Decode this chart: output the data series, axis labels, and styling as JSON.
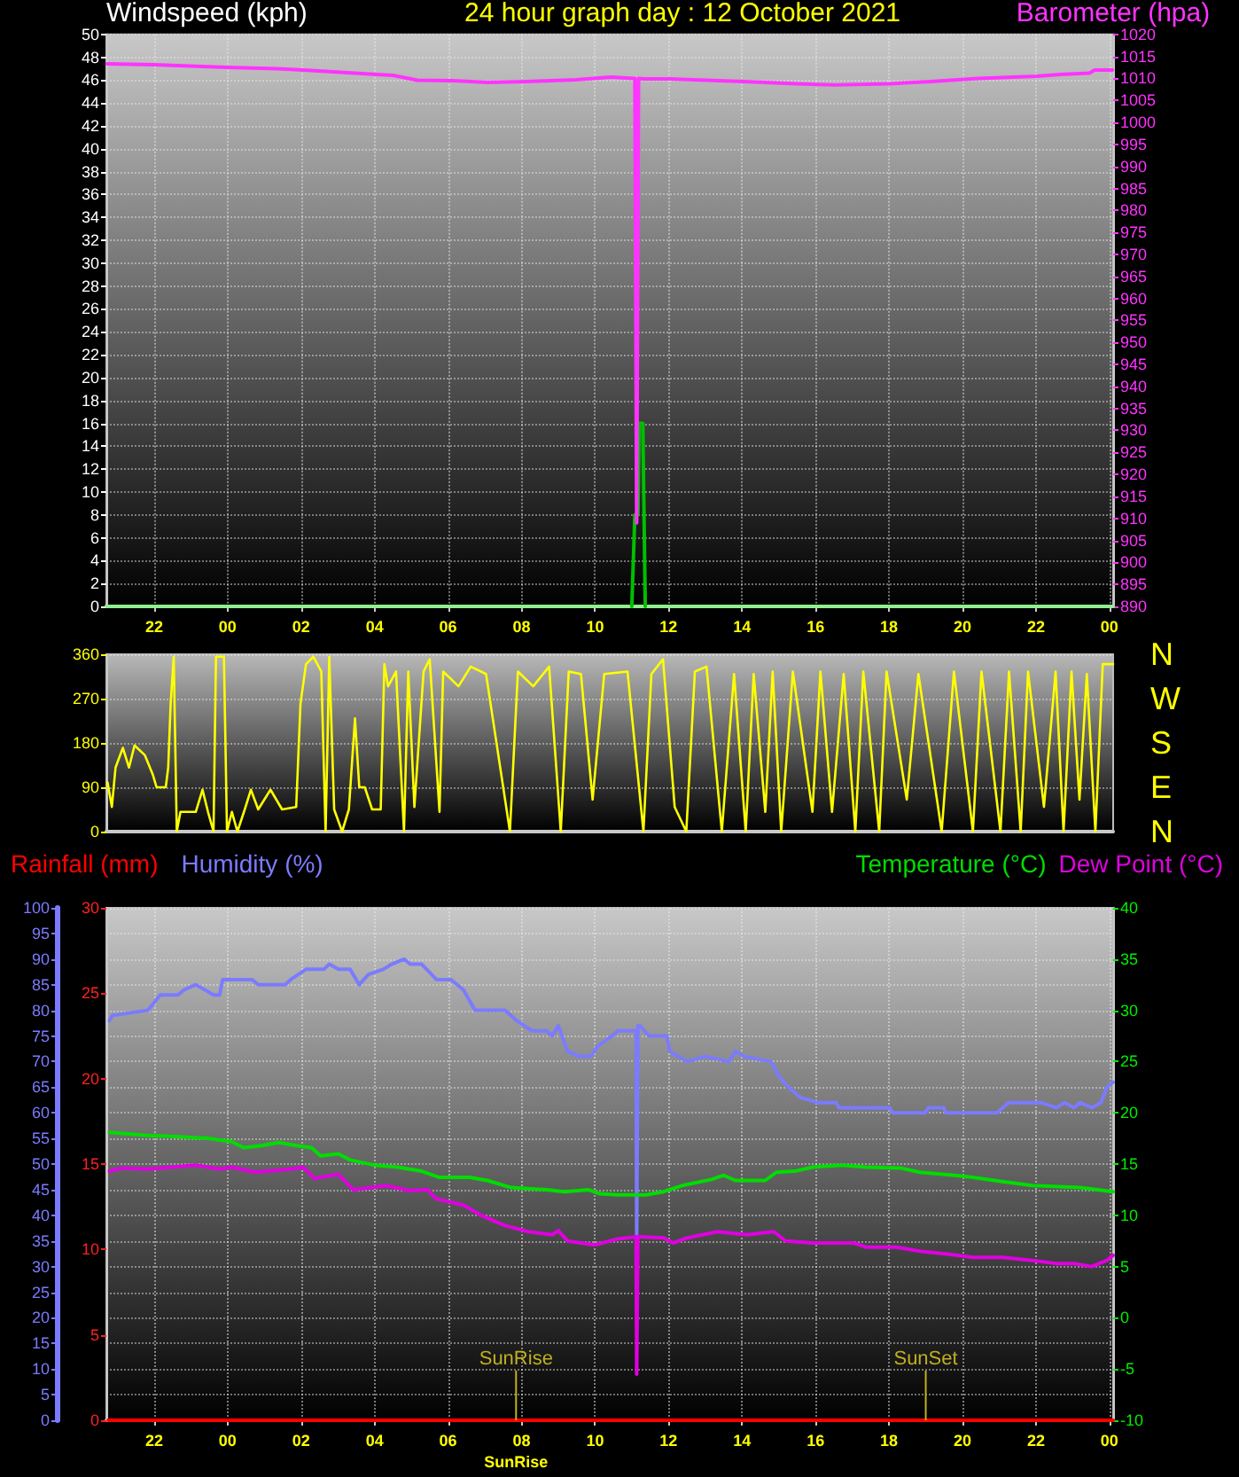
{
  "chart_data": [
    {
      "type": "line",
      "title": "24 hour graph day : 12 October 2021",
      "ylabel": "Windspeed (kph)",
      "y2label": "Barometer (hpa)",
      "xlim": [
        "2021-10-11T20:42",
        "2021-10-13T00:06"
      ],
      "xticks": [
        {
          "value": "2021-10-11T22:00",
          "label": "22"
        },
        {
          "value": "2021-10-12T00:00",
          "label": "00"
        },
        {
          "value": "2021-10-12T02:00",
          "label": "02"
        },
        {
          "value": "2021-10-12T04:00",
          "label": "04"
        },
        {
          "value": "2021-10-12T06:00",
          "label": "06"
        },
        {
          "value": "2021-10-12T08:00",
          "label": "08"
        },
        {
          "value": "2021-10-12T10:00",
          "label": "10"
        },
        {
          "value": "2021-10-12T12:00",
          "label": "12"
        },
        {
          "value": "2021-10-12T14:00",
          "label": "14"
        },
        {
          "value": "2021-10-12T16:00",
          "label": "16"
        },
        {
          "value": "2021-10-12T18:00",
          "label": "18"
        },
        {
          "value": "2021-10-12T20:00",
          "label": "20"
        },
        {
          "value": "2021-10-12T22:00",
          "label": "22"
        },
        {
          "value": "2021-10-13T00:00",
          "label": "00"
        }
      ],
      "ylim": [
        0,
        50
      ],
      "yticks": [
        0,
        2,
        4,
        6,
        8,
        10,
        12,
        14,
        16,
        18,
        20,
        22,
        24,
        26,
        28,
        30,
        32,
        34,
        36,
        38,
        40,
        42,
        44,
        46,
        48,
        50
      ],
      "y2lim": [
        890,
        1020
      ],
      "y2ticks": [
        890,
        895,
        900,
        905,
        910,
        915,
        920,
        925,
        930,
        935,
        940,
        945,
        950,
        955,
        960,
        965,
        970,
        975,
        980,
        985,
        990,
        995,
        1000,
        1005,
        1010,
        1015,
        1020
      ],
      "grid": true,
      "series": [
        {
          "color": "#90ee90",
          "x": [
            "2021-10-11T20:42",
            "2021-10-13T00:06"
          ],
          "values": [
            0,
            0
          ]
        },
        {
          "color": "#00c000",
          "x": [
            "2021-10-12T11:00",
            "2021-10-12T11:05",
            "2021-10-12T11:10",
            "2021-10-12T11:12",
            "2021-10-12T11:18",
            "2021-10-12T11:22"
          ],
          "values": [
            0,
            8,
            8,
            16,
            16,
            0
          ]
        },
        {
          "color": "#ff33ff",
          "axis": "y2",
          "x": [
            "2021-10-11T20:43",
            "2021-10-11T22:00",
            "2021-10-12T00:00",
            "2021-10-12T01:21",
            "2021-10-12T02:04",
            "2021-10-12T04:04",
            "2021-10-12T04:30",
            "2021-10-12T05:10",
            "2021-10-12T06:08",
            "2021-10-12T07:05",
            "2021-10-12T08:08",
            "2021-10-12T09:28",
            "2021-10-12T10:26",
            "2021-10-12T11:05",
            "2021-10-12T11:08",
            "2021-10-12T11:11",
            "2021-10-12T11:20",
            "2021-10-12T12:03",
            "2021-10-12T14:03",
            "2021-10-12T15:29",
            "2021-10-12T16:31",
            "2021-10-12T18:02",
            "2021-10-12T19:08",
            "2021-10-12T20:25",
            "2021-10-12T22:01",
            "2021-10-12T22:39",
            "2021-10-12T23:27",
            "2021-10-12T23:36",
            "2021-10-13T00:05"
          ],
          "values": [
            1013.3,
            1013.1,
            1012.5,
            1012.2,
            1011.9,
            1010.9,
            1010.7,
            1009.6,
            1009.5,
            1009.1,
            1009.3,
            1009.7,
            1010.3,
            1010.0,
            909,
            1010.0,
            1009.9,
            1009.9,
            1009.3,
            1008.8,
            1008.5,
            1008.8,
            1009.3,
            1010.0,
            1010.5,
            1010.9,
            1011.2,
            1011.9,
            1011.9
          ]
        }
      ]
    },
    {
      "type": "line",
      "xlim": [
        "2021-10-11T20:42",
        "2021-10-13T00:06"
      ],
      "ylim": [
        0,
        360
      ],
      "yticks": [
        0,
        90,
        180,
        270,
        360
      ],
      "tick_labels": "y",
      "grid": "y",
      "annotations": [
        "N",
        "W",
        "S",
        "E",
        "N"
      ],
      "series": [
        {
          "color": "#ffff00",
          "x": [
            "2021-10-11T20:44",
            "2021-10-11T20:51",
            "2021-10-11T20:57",
            "2021-10-11T21:09",
            "2021-10-11T21:19",
            "2021-10-11T21:28",
            "2021-10-11T21:45",
            "2021-10-11T21:58",
            "2021-10-11T22:04",
            "2021-10-11T22:19",
            "2021-10-11T22:23",
            "2021-10-11T22:27",
            "2021-10-11T22:32",
            "2021-10-11T22:37",
            "2021-10-11T22:43",
            "2021-10-11T23:08",
            "2021-10-11T23:19",
            "2021-10-11T23:28",
            "2021-10-11T23:37",
            "2021-10-11T23:41",
            "2021-10-11T23:54",
            "2021-10-11T23:59",
            "2021-10-12T00:07",
            "2021-10-12T00:16",
            "2021-10-12T00:28",
            "2021-10-12T00:38",
            "2021-10-12T00:50",
            "2021-10-12T01:10",
            "2021-10-12T01:29",
            "2021-10-12T01:52",
            "2021-10-12T01:59",
            "2021-10-12T02:08",
            "2021-10-12T02:20",
            "2021-10-12T02:33",
            "2021-10-12T02:40",
            "2021-10-12T02:46",
            "2021-10-12T02:54",
            "2021-10-12T03:07",
            "2021-10-12T03:18",
            "2021-10-12T03:28",
            "2021-10-12T03:35",
            "2021-10-12T03:44",
            "2021-10-12T03:56",
            "2021-10-12T04:10",
            "2021-10-12T04:16",
            "2021-10-12T04:22",
            "2021-10-12T04:35",
            "2021-10-12T04:48",
            "2021-10-12T04:55",
            "2021-10-12T05:05",
            "2021-10-12T05:20",
            "2021-10-12T05:30",
            "2021-10-12T05:46",
            "2021-10-12T05:52",
            "2021-10-12T06:17",
            "2021-10-12T06:37",
            "2021-10-12T07:02",
            "2021-10-12T07:41",
            "2021-10-12T07:54",
            "2021-10-12T08:19",
            "2021-10-12T08:45",
            "2021-10-12T09:04",
            "2021-10-12T09:17",
            "2021-10-12T09:37",
            "2021-10-12T09:56",
            "2021-10-12T10:15",
            "2021-10-12T10:53",
            "2021-10-12T11:19",
            "2021-10-12T11:32",
            "2021-10-12T11:51",
            "2021-10-12T12:10",
            "2021-10-12T12:29",
            "2021-10-12T12:43",
            "2021-10-12T13:02",
            "2021-10-12T13:27",
            "2021-10-12T13:47",
            "2021-10-12T14:06",
            "2021-10-12T14:19",
            "2021-10-12T14:38",
            "2021-10-12T14:50",
            "2021-10-12T15:04",
            "2021-10-12T15:23",
            "2021-10-12T15:55",
            "2021-10-12T16:08",
            "2021-10-12T16:27",
            "2021-10-12T16:46",
            "2021-10-12T17:05",
            "2021-10-12T17:18",
            "2021-10-12T17:44",
            "2021-10-12T17:56",
            "2021-10-12T18:29",
            "2021-10-12T18:48",
            "2021-10-12T19:26",
            "2021-10-12T19:46",
            "2021-10-12T20:17",
            "2021-10-12T20:31",
            "2021-10-12T21:02",
            "2021-10-12T21:16",
            "2021-10-12T21:35",
            "2021-10-12T21:47",
            "2021-10-12T22:13",
            "2021-10-12T22:32",
            "2021-10-12T22:45",
            "2021-10-12T22:58",
            "2021-10-12T23:11",
            "2021-10-12T23:23",
            "2021-10-12T23:37",
            "2021-10-12T23:49",
            "2021-10-13T00:06"
          ],
          "values": [
            100,
            50,
            130,
            170,
            130,
            175,
            155,
            115,
            90,
            90,
            130,
            260,
            355,
            0,
            40,
            40,
            85,
            40,
            0,
            355,
            355,
            0,
            40,
            0,
            45,
            85,
            45,
            85,
            45,
            50,
            260,
            340,
            355,
            325,
            0,
            355,
            45,
            0,
            45,
            230,
            90,
            90,
            45,
            45,
            340,
            295,
            325,
            0,
            325,
            50,
            325,
            350,
            40,
            325,
            295,
            335,
            320,
            0,
            325,
            295,
            335,
            0,
            325,
            320,
            65,
            320,
            325,
            0,
            320,
            350,
            50,
            0,
            325,
            335,
            0,
            320,
            0,
            320,
            40,
            325,
            0,
            325,
            40,
            325,
            40,
            320,
            0,
            325,
            0,
            325,
            65,
            320,
            0,
            325,
            0,
            325,
            0,
            325,
            0,
            325,
            50,
            325,
            0,
            325,
            65,
            320,
            0,
            340,
            340
          ]
        }
      ]
    },
    {
      "type": "line",
      "legend": "top",
      "xlim": [
        "2021-10-11T20:42",
        "2021-10-13T00:06"
      ],
      "xticks": [
        {
          "value": "2021-10-11T22:00",
          "label": "22"
        },
        {
          "value": "2021-10-12T00:00",
          "label": "00"
        },
        {
          "value": "2021-10-12T02:00",
          "label": "02"
        },
        {
          "value": "2021-10-12T04:00",
          "label": "04"
        },
        {
          "value": "2021-10-12T06:00",
          "label": "06"
        },
        {
          "value": "2021-10-12T08:00",
          "label": "08"
        },
        {
          "value": "2021-10-12T10:00",
          "label": "10"
        },
        {
          "value": "2021-10-12T12:00",
          "label": "12"
        },
        {
          "value": "2021-10-12T14:00",
          "label": "14"
        },
        {
          "value": "2021-10-12T16:00",
          "label": "16"
        },
        {
          "value": "2021-10-12T18:00",
          "label": "18"
        },
        {
          "value": "2021-10-12T20:00",
          "label": "20"
        },
        {
          "value": "2021-10-12T22:00",
          "label": "22"
        },
        {
          "value": "2021-10-13T00:00",
          "label": "00"
        }
      ],
      "ylim": [
        0,
        100
      ],
      "yticks": [
        0,
        5,
        10,
        15,
        20,
        25,
        30,
        35,
        40,
        45,
        50,
        55,
        60,
        65,
        70,
        75,
        80,
        85,
        90,
        95,
        100
      ],
      "y2lim": [
        -10,
        40
      ],
      "y2ticks": [
        -10,
        -5,
        0,
        5,
        10,
        15,
        20,
        25,
        30,
        35,
        40
      ],
      "y3lim": [
        0,
        30
      ],
      "y3ticks": [
        0,
        5,
        10,
        15,
        20,
        25,
        30
      ],
      "grid": true,
      "ref_lines": [
        {
          "axis": "x",
          "value": "2021-10-12T07:51",
          "label": "SunRise",
          "color": "#c0b020"
        },
        {
          "axis": "x",
          "value": "2021-10-12T19:00",
          "label": "SunSet",
          "color": "#c0b020"
        }
      ],
      "annotations": [
        "SunRise"
      ],
      "series": [
        {
          "name": "Rainfall (mm)",
          "color": "#ff0000",
          "axis": "y3",
          "x": [
            "2021-10-11T20:45",
            "2021-10-13T00:06"
          ],
          "values": [
            0,
            0
          ]
        },
        {
          "name": "Humidity (%)",
          "color": "#7b7bff",
          "x": [
            "2021-10-11T20:47",
            "2021-10-11T20:52",
            "2021-10-11T21:50",
            "2021-10-11T22:10",
            "2021-10-11T22:39",
            "2021-10-11T22:49",
            "2021-10-11T23:08",
            "2021-10-11T23:23",
            "2021-10-11T23:37",
            "2021-10-11T23:47",
            "2021-10-11T23:52",
            "2021-10-12T00:40",
            "2021-10-12T00:50",
            "2021-10-12T01:34",
            "2021-10-12T01:43",
            "2021-10-12T02:08",
            "2021-10-12T02:37",
            "2021-10-12T02:46",
            "2021-10-12T03:01",
            "2021-10-12T03:20",
            "2021-10-12T03:35",
            "2021-10-12T03:50",
            "2021-10-12T04:14",
            "2021-10-12T04:28",
            "2021-10-12T04:48",
            "2021-10-12T04:58",
            "2021-10-12T05:17",
            "2021-10-12T05:41",
            "2021-10-12T06:05",
            "2021-10-12T06:25",
            "2021-10-12T06:44",
            "2021-10-12T07:04",
            "2021-10-12T07:33",
            "2021-10-12T07:52",
            "2021-10-12T08:17",
            "2021-10-12T08:41",
            "2021-10-12T08:50",
            "2021-10-12T09:00",
            "2021-10-12T09:15",
            "2021-10-12T09:34",
            "2021-10-12T09:53",
            "2021-10-12T10:04",
            "2021-10-12T10:28",
            "2021-10-12T10:37",
            "2021-10-12T11:04",
            "2021-10-12T11:07",
            "2021-10-12T11:08",
            "2021-10-12T11:10",
            "2021-10-12T11:13",
            "2021-10-12T11:28",
            "2021-10-12T11:57",
            "2021-10-12T12:02",
            "2021-10-12T12:31",
            "2021-10-12T13:00",
            "2021-10-12T13:39",
            "2021-10-12T13:49",
            "2021-10-12T14:03",
            "2021-10-12T14:47",
            "2021-10-12T15:01",
            "2021-10-12T15:16",
            "2021-10-12T15:35",
            "2021-10-12T16:04",
            "2021-10-12T16:34",
            "2021-10-12T16:38",
            "2021-10-12T18:01",
            "2021-10-12T18:06",
            "2021-10-12T18:59",
            "2021-10-12T19:04",
            "2021-10-12T19:29",
            "2021-10-12T19:33",
            "2021-10-12T20:56",
            "2021-10-12T21:15",
            "2021-10-12T22:08",
            "2021-10-12T22:33",
            "2021-10-12T22:47",
            "2021-10-12T23:02",
            "2021-10-12T23:12",
            "2021-10-12T23:31",
            "2021-10-12T23:46",
            "2021-10-12T23:56",
            "2021-10-13T00:06"
          ],
          "values": [
            78,
            79,
            80,
            83,
            83,
            84,
            85,
            84,
            83,
            83,
            86,
            86,
            85,
            85,
            86,
            88,
            88,
            89,
            88,
            88,
            85,
            87,
            88,
            89,
            90,
            89,
            89,
            86,
            86,
            84,
            80,
            80,
            80,
            78,
            76,
            76,
            75,
            77,
            72,
            71,
            71,
            73,
            75,
            76,
            76,
            76,
            36,
            77,
            77,
            75,
            75,
            72,
            70,
            71,
            70,
            72,
            71,
            70,
            67,
            65,
            63,
            62,
            62,
            61,
            61,
            60,
            60,
            61,
            61,
            60,
            60,
            62,
            62,
            61,
            62,
            61,
            62,
            61,
            62,
            65,
            66
          ]
        },
        {
          "name": "Temperature (°C)",
          "color": "#00dd00",
          "axis": "y2",
          "x": [
            "2021-10-11T20:47",
            "2021-10-11T21:50",
            "2021-10-11T22:29",
            "2021-10-11T23:28",
            "2021-10-12T00:06",
            "2021-10-12T00:26",
            "2021-10-12T00:55",
            "2021-10-12T01:24",
            "2021-10-12T01:53",
            "2021-10-12T02:17",
            "2021-10-12T02:32",
            "2021-10-12T03:01",
            "2021-10-12T03:20",
            "2021-10-12T03:59",
            "2021-10-12T04:38",
            "2021-10-12T05:17",
            "2021-10-12T05:46",
            "2021-10-12T06:35",
            "2021-10-12T07:04",
            "2021-10-12T07:43",
            "2021-10-12T08:41",
            "2021-10-12T09:10",
            "2021-10-12T09:49",
            "2021-10-12T10:08",
            "2021-10-12T10:37",
            "2021-10-12T11:23",
            "2021-10-12T11:52",
            "2021-10-12T12:22",
            "2021-10-12T13:10",
            "2021-10-12T13:30",
            "2021-10-12T13:49",
            "2021-10-12T14:38",
            "2021-10-12T14:56",
            "2021-10-12T15:26",
            "2021-10-12T15:55",
            "2021-10-12T16:43",
            "2021-10-12T17:22",
            "2021-10-12T18:20",
            "2021-10-12T18:50",
            "2021-10-12T19:48",
            "2021-10-12T20:17",
            "2021-10-12T21:05",
            "2021-10-12T21:54",
            "2021-10-12T23:12",
            "2021-10-12T23:41",
            "2021-10-13T00:06"
          ],
          "values": [
            18.1,
            17.8,
            17.7,
            17.5,
            17.2,
            16.6,
            16.8,
            17.1,
            16.8,
            16.6,
            15.8,
            16.0,
            15.4,
            14.9,
            14.7,
            14.3,
            13.7,
            13.7,
            13.4,
            12.7,
            12.5,
            12.3,
            12.5,
            12.1,
            12.0,
            12.0,
            12.3,
            12.9,
            13.5,
            13.9,
            13.4,
            13.4,
            14.2,
            14.3,
            14.7,
            14.9,
            14.7,
            14.6,
            14.2,
            13.9,
            13.7,
            13.3,
            12.9,
            12.7,
            12.5,
            12.3
          ]
        },
        {
          "name": "Dew Point (°C)",
          "color": "#e000e0",
          "axis": "y2",
          "x": [
            "2021-10-11T20:47",
            "2021-10-11T21:07",
            "2021-10-11T21:50",
            "2021-10-11T22:29",
            "2021-10-11T23:08",
            "2021-10-11T23:47",
            "2021-10-12T00:06",
            "2021-10-12T00:45",
            "2021-10-12T01:43",
            "2021-10-12T02:03",
            "2021-10-12T02:22",
            "2021-10-12T03:01",
            "2021-10-12T03:25",
            "2021-10-12T04:19",
            "2021-10-12T04:58",
            "2021-10-12T05:26",
            "2021-10-12T05:41",
            "2021-10-12T06:25",
            "2021-10-12T06:54",
            "2021-10-12T07:33",
            "2021-10-12T08:11",
            "2021-10-12T08:50",
            "2021-10-12T09:00",
            "2021-10-12T09:15",
            "2021-10-12T09:59",
            "2021-10-12T10:37",
            "2021-10-12T11:07",
            "2021-10-12T11:08",
            "2021-10-12T11:10",
            "2021-10-12T11:13",
            "2021-10-12T11:52",
            "2021-10-12T12:07",
            "2021-10-12T12:31",
            "2021-10-12T13:20",
            "2021-10-12T14:08",
            "2021-10-12T14:52",
            "2021-10-12T15:11",
            "2021-10-12T15:55",
            "2021-10-12T17:03",
            "2021-10-12T17:22",
            "2021-10-12T18:11",
            "2021-10-12T18:50",
            "2021-10-12T19:38",
            "2021-10-12T20:17",
            "2021-10-12T21:05",
            "2021-10-12T21:54",
            "2021-10-12T22:33",
            "2021-10-12T23:02",
            "2021-10-12T23:31",
            "2021-10-12T23:56",
            "2021-10-13T00:06"
          ],
          "values": [
            14.3,
            14.6,
            14.5,
            14.7,
            14.9,
            14.5,
            14.7,
            14.2,
            14.5,
            14.7,
            13.6,
            14.0,
            12.5,
            12.9,
            12.4,
            12.5,
            11.6,
            11.0,
            10.0,
            9.0,
            8.4,
            8.1,
            8.5,
            7.5,
            7.1,
            7.7,
            7.9,
            -5.5,
            7.9,
            7.9,
            7.8,
            7.3,
            7.8,
            8.4,
            8.1,
            8.4,
            7.5,
            7.3,
            7.3,
            6.9,
            6.9,
            6.5,
            6.2,
            5.9,
            5.9,
            5.6,
            5.3,
            5.3,
            5.0,
            5.6,
            6.1
          ]
        }
      ]
    }
  ]
}
